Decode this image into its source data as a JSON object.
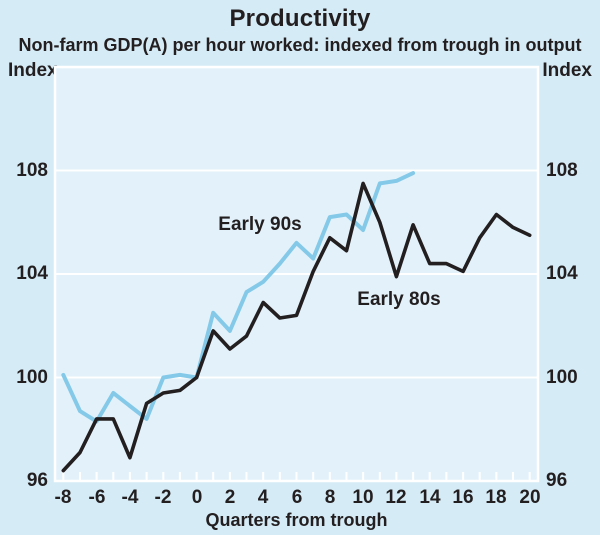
{
  "page": {
    "title": "Productivity",
    "subtitle": "Non-farm GDP(A) per hour worked: indexed from trough in output",
    "left_axis_unit": "Index",
    "right_axis_unit": "Index",
    "x_axis_title": "Quarters from trough"
  },
  "colors": {
    "page_background": "#d5ebf6",
    "plot_background": "#e3f2fa",
    "grid": "#ffffff",
    "text": "#231f20",
    "early_90s_line": "#85c9e9",
    "early_80s_line": "#231f20"
  },
  "chart_data": {
    "type": "line",
    "title": "Productivity",
    "subtitle": "Non-farm GDP(A) per hour worked: indexed from trough in output",
    "xlabel": "Quarters from trough",
    "ylabel_left": "Index",
    "ylabel_right": "Index",
    "xlim": [
      -8.5,
      20.5
    ],
    "ylim": [
      96,
      112
    ],
    "x_tick_marks_every": 1,
    "x_tick_labels": [
      -8,
      -6,
      -4,
      -2,
      0,
      2,
      4,
      6,
      8,
      10,
      12,
      14,
      16,
      18,
      20
    ],
    "y_tick_labels": [
      96,
      100,
      104,
      108
    ],
    "gridlines_y": [
      100,
      104,
      108
    ],
    "grid_on": true,
    "legend_position": "inline-annotations",
    "series": [
      {
        "name": "Early 90s",
        "color": "#85c9e9",
        "stroke_width": 4,
        "x": [
          -8,
          -7,
          -6,
          -5,
          -4,
          -3,
          -2,
          -1,
          0,
          1,
          2,
          3,
          4,
          5,
          6,
          7,
          8,
          9,
          10,
          11,
          12,
          13
        ],
        "values": [
          100.1,
          98.7,
          98.3,
          99.4,
          98.9,
          98.4,
          100.0,
          100.1,
          100.0,
          102.5,
          101.8,
          103.3,
          103.7,
          104.4,
          105.2,
          104.6,
          106.2,
          106.3,
          105.7,
          107.5,
          107.6,
          107.9
        ],
        "label": {
          "text": "Early 90s",
          "x": 3.8,
          "y": 105.9
        }
      },
      {
        "name": "Early 80s",
        "color": "#231f20",
        "stroke_width": 3.6,
        "x": [
          -8,
          -7,
          -6,
          -5,
          -4,
          -3,
          -2,
          -1,
          0,
          1,
          2,
          3,
          4,
          5,
          6,
          7,
          8,
          9,
          10,
          11,
          12,
          13,
          14,
          15,
          16,
          17,
          18,
          19,
          20
        ],
        "values": [
          96.4,
          97.1,
          98.4,
          98.4,
          96.9,
          99.0,
          99.4,
          99.5,
          100.0,
          101.8,
          101.1,
          101.6,
          102.9,
          102.3,
          102.4,
          104.1,
          105.4,
          104.9,
          107.5,
          106.0,
          103.9,
          105.9,
          104.4,
          104.4,
          104.1,
          105.4,
          106.3,
          105.8,
          105.5
        ],
        "label": {
          "text": "Early 80s",
          "x": 12.15,
          "y": 103.0
        }
      }
    ]
  }
}
